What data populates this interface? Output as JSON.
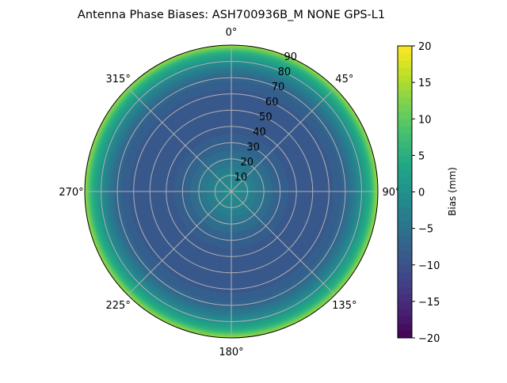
{
  "chart_data": {
    "type": "heatmap",
    "projection": "polar",
    "title": "Antenna Phase Biases: ASH700936B_M    NONE GPS-L1",
    "theta_direction": "clockwise",
    "theta_zero": "top",
    "theta_tick_labels": [
      "0°",
      "45°",
      "90°",
      "135°",
      "180°",
      "225°",
      "270°",
      "315°"
    ],
    "r_tick_labels": [
      "10",
      "20",
      "30",
      "40",
      "50",
      "60",
      "70",
      "80",
      "90"
    ],
    "r_range": [
      0,
      90
    ],
    "grid": true,
    "colormap": "viridis",
    "colorbar": {
      "label": "Bias (mm)",
      "range": [
        -20,
        20
      ],
      "tick_labels": [
        "20",
        "15",
        "10",
        "5",
        "0",
        "−5",
        "−10",
        "−15",
        "−20"
      ]
    },
    "radial_profile": {
      "zenith_deg": [
        0,
        10,
        20,
        30,
        40,
        50,
        60,
        70,
        75,
        80,
        85,
        90
      ],
      "bias_mm": [
        -1,
        -2,
        -5,
        -8,
        -9,
        -9.5,
        -9,
        -7,
        -4,
        0,
        5,
        14
      ]
    }
  }
}
